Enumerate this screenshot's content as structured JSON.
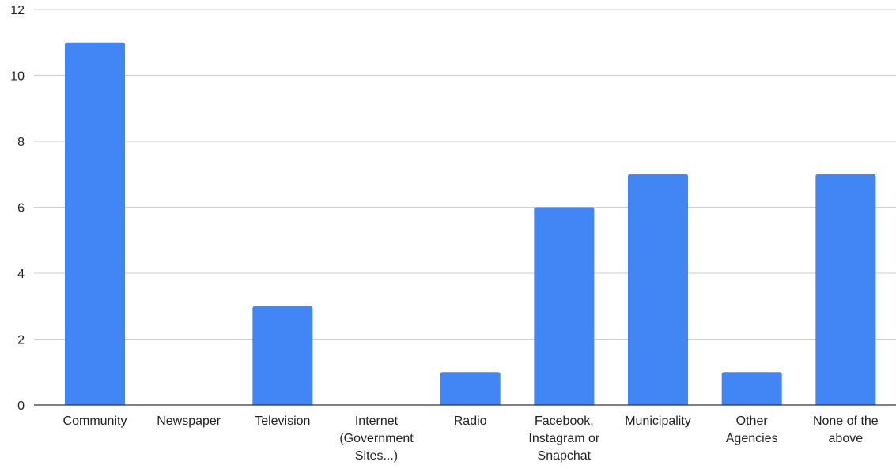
{
  "chart_data": {
    "type": "bar",
    "title": "",
    "xlabel": "",
    "ylabel": "",
    "categories": [
      "Community",
      "Newspaper",
      "Television",
      "Internet (Government Sites...)",
      "Radio",
      "Facebook, Instagram or Snapchat",
      "Municipality",
      "Other Agencies",
      "None of the above"
    ],
    "category_label_lines": [
      [
        "Community"
      ],
      [
        "Newspaper"
      ],
      [
        "Television"
      ],
      [
        "Internet",
        "(Government",
        "Sites...)"
      ],
      [
        "Radio"
      ],
      [
        "Facebook,",
        "Instagram or",
        "Snapchat"
      ],
      [
        "Municipality"
      ],
      [
        "Other",
        "Agencies"
      ],
      [
        "None of the",
        "above"
      ]
    ],
    "values": [
      11,
      0,
      3,
      0,
      1,
      6,
      7,
      1,
      7
    ],
    "ylim": [
      0,
      12
    ],
    "yticks": [
      0,
      2,
      4,
      6,
      8,
      10,
      12
    ],
    "grid": true,
    "legend": "none",
    "colors": {
      "bar": "#4285F4",
      "grid": "#cccccc",
      "axis": "#333333",
      "text": "#222222"
    }
  }
}
